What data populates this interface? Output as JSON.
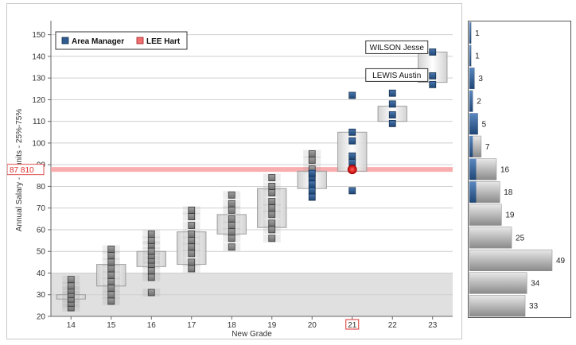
{
  "chart_data": {
    "type": "box-scatter",
    "xlabel": "New Grade",
    "ylabel": "Annual Salary - K-units - 25%-75%",
    "categories": [
      "14",
      "15",
      "16",
      "17",
      "18",
      "19",
      "20",
      "21",
      "22",
      "23"
    ],
    "highlighted_category": "21",
    "ylim": [
      20,
      155
    ],
    "yticks": [
      20,
      30,
      40,
      50,
      60,
      70,
      80,
      90,
      100,
      110,
      120,
      130,
      140,
      150
    ],
    "shaded_band": [
      20,
      40
    ],
    "reference_line": {
      "label": "87 810",
      "value": 87.81
    },
    "legend": [
      {
        "label": "Area Manager",
        "color": "#2f5b8f"
      },
      {
        "label": "LEE Hart",
        "color": "#f07070"
      }
    ],
    "boxes": [
      {
        "grade": "14",
        "q1": 28,
        "q3": 30
      },
      {
        "grade": "15",
        "q1": 34,
        "q3": 44
      },
      {
        "grade": "16",
        "q1": 43,
        "q3": 50
      },
      {
        "grade": "17",
        "q1": 44,
        "q3": 59
      },
      {
        "grade": "18",
        "q1": 58,
        "q3": 67
      },
      {
        "grade": "19",
        "q1": 61,
        "q3": 79
      },
      {
        "grade": "20",
        "q1": 79,
        "q3": 87
      },
      {
        "grade": "21",
        "q1": 87,
        "q3": 105
      },
      {
        "grade": "22",
        "q1": 110,
        "q3": 117
      },
      {
        "grade": "23",
        "q1": 128,
        "q3": 142
      }
    ],
    "points_other": [
      {
        "grade": "14",
        "values": [
          24,
          26,
          28,
          30,
          32,
          34,
          37
        ]
      },
      {
        "grade": "15",
        "values": [
          27,
          30,
          33,
          36,
          39,
          42,
          45,
          48,
          51
        ]
      },
      {
        "grade": "16",
        "values": [
          31,
          38,
          41,
          44,
          46,
          48,
          50,
          53,
          55,
          58
        ]
      },
      {
        "grade": "17",
        "values": [
          42,
          45,
          49,
          52,
          55,
          58,
          62,
          66,
          69
        ]
      },
      {
        "grade": "18",
        "values": [
          52,
          56,
          59,
          62,
          65,
          69,
          72,
          76
        ]
      },
      {
        "grade": "19",
        "values": [
          56,
          60,
          63,
          67,
          70,
          73,
          77,
          80,
          84
        ]
      },
      {
        "grade": "20",
        "values": [
          88,
          92,
          95
        ]
      }
    ],
    "points_area_manager": [
      {
        "grade": "20",
        "values": [
          75,
          78,
          81,
          84,
          86
        ]
      },
      {
        "grade": "21",
        "values": [
          78,
          91,
          94,
          101,
          105,
          122
        ]
      },
      {
        "grade": "22",
        "values": [
          109,
          113,
          118,
          123
        ]
      },
      {
        "grade": "23",
        "values": [
          127,
          131,
          142
        ]
      }
    ],
    "highlight_point": {
      "grade": "21",
      "value": 87.8,
      "label": "LEE Hart"
    },
    "callouts": [
      {
        "label": "WILSON Jesse",
        "grade": "23",
        "value": 142
      },
      {
        "label": "LEWIS Austin",
        "grade": "23",
        "value": 131
      }
    ],
    "histogram": {
      "bins": [
        {
          "low": 140,
          "high": 150,
          "count": 1,
          "area_manager": 1
        },
        {
          "low": 130,
          "high": 140,
          "count": 1,
          "area_manager": 1
        },
        {
          "low": 120,
          "high": 130,
          "count": 3,
          "area_manager": 3
        },
        {
          "low": 110,
          "high": 120,
          "count": 2,
          "area_manager": 2
        },
        {
          "low": 100,
          "high": 110,
          "count": 5,
          "area_manager": 5
        },
        {
          "low": 90,
          "high": 100,
          "count": 7,
          "area_manager": 2
        },
        {
          "low": 80,
          "high": 90,
          "count": 16,
          "area_manager": 4
        },
        {
          "low": 70,
          "high": 80,
          "count": 18,
          "area_manager": 4
        },
        {
          "low": 60,
          "high": 70,
          "count": 19,
          "area_manager": 0
        },
        {
          "low": 50,
          "high": 60,
          "count": 25,
          "area_manager": 0
        },
        {
          "low": 40,
          "high": 50,
          "count": 49,
          "area_manager": 0
        },
        {
          "low": 30,
          "high": 40,
          "count": 34,
          "area_manager": 0
        },
        {
          "low": 20,
          "high": 30,
          "count": 33,
          "area_manager": 0
        }
      ]
    }
  }
}
